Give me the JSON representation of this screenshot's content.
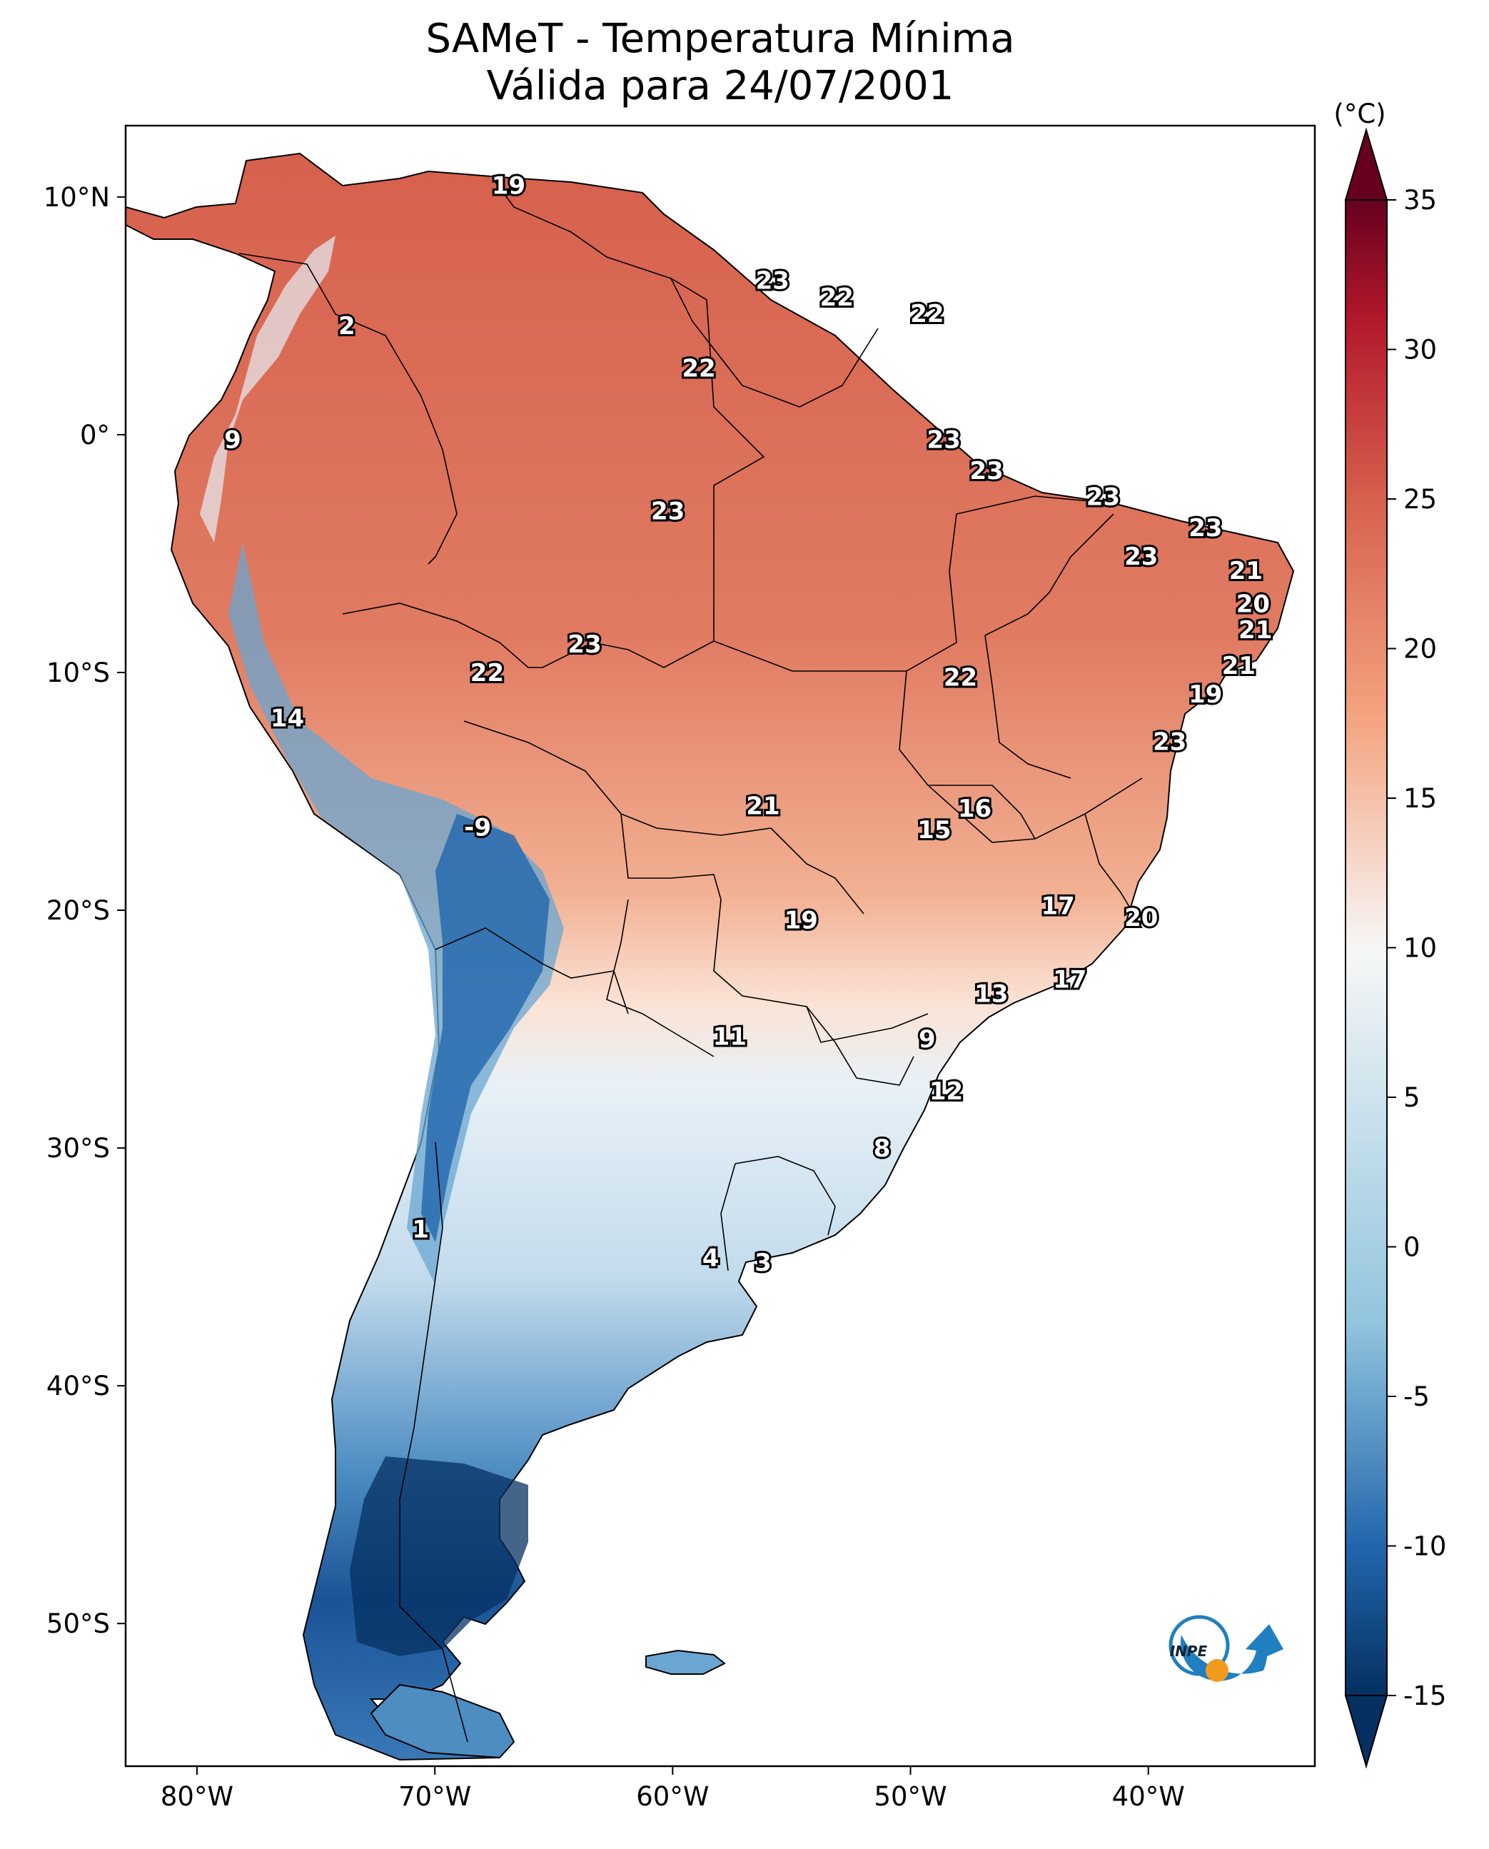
{
  "title": {
    "line1": "SAMeT - Temperatura Mínima",
    "line2": "Válida para 24/07/2001"
  },
  "map": {
    "lon_labels": [
      "80°W",
      "70°W",
      "60°W",
      "50°W",
      "40°W"
    ],
    "lat_labels": [
      "10°N",
      "0°",
      "10°S",
      "20°S",
      "30°S",
      "40°S",
      "50°S"
    ],
    "station_values": [
      {
        "lon": -66.9,
        "lat": 10.5,
        "value": "19"
      },
      {
        "lon": -55.8,
        "lat": 6.5,
        "value": "23"
      },
      {
        "lon": -53.1,
        "lat": 5.8,
        "value": "22"
      },
      {
        "lon": -49.3,
        "lat": 5.1,
        "value": "22"
      },
      {
        "lon": -73.7,
        "lat": 4.6,
        "value": "2"
      },
      {
        "lon": -58.9,
        "lat": 2.8,
        "value": "22"
      },
      {
        "lon": -78.5,
        "lat": -0.2,
        "value": "9"
      },
      {
        "lon": -48.6,
        "lat": -0.2,
        "value": "23"
      },
      {
        "lon": -46.8,
        "lat": -1.5,
        "value": "23"
      },
      {
        "lon": -41.9,
        "lat": -2.6,
        "value": "23"
      },
      {
        "lon": -60.2,
        "lat": -3.2,
        "value": "23"
      },
      {
        "lon": -37.6,
        "lat": -3.9,
        "value": "23"
      },
      {
        "lon": -40.3,
        "lat": -5.1,
        "value": "23"
      },
      {
        "lon": -35.9,
        "lat": -5.7,
        "value": "21"
      },
      {
        "lon": -35.6,
        "lat": -7.1,
        "value": "20"
      },
      {
        "lon": -35.5,
        "lat": -8.2,
        "value": "21"
      },
      {
        "lon": -63.7,
        "lat": -8.8,
        "value": "23"
      },
      {
        "lon": -36.2,
        "lat": -9.7,
        "value": "21"
      },
      {
        "lon": -67.8,
        "lat": -10.0,
        "value": "22"
      },
      {
        "lon": -47.9,
        "lat": -10.2,
        "value": "22"
      },
      {
        "lon": -37.6,
        "lat": -10.9,
        "value": "19"
      },
      {
        "lon": -76.2,
        "lat": -11.9,
        "value": "14"
      },
      {
        "lon": -39.1,
        "lat": -12.9,
        "value": "23"
      },
      {
        "lon": -56.2,
        "lat": -15.6,
        "value": "21"
      },
      {
        "lon": -47.3,
        "lat": -15.7,
        "value": "16"
      },
      {
        "lon": -49.0,
        "lat": -16.6,
        "value": "15"
      },
      {
        "lon": -68.2,
        "lat": -16.5,
        "value": "-9"
      },
      {
        "lon": -43.8,
        "lat": -19.8,
        "value": "17"
      },
      {
        "lon": -40.3,
        "lat": -20.3,
        "value": "20"
      },
      {
        "lon": -54.6,
        "lat": -20.4,
        "value": "19"
      },
      {
        "lon": -43.3,
        "lat": -22.9,
        "value": "17"
      },
      {
        "lon": -46.6,
        "lat": -23.5,
        "value": "13"
      },
      {
        "lon": -57.6,
        "lat": -25.3,
        "value": "11"
      },
      {
        "lon": -49.3,
        "lat": -25.4,
        "value": "9"
      },
      {
        "lon": -48.5,
        "lat": -27.6,
        "value": "12"
      },
      {
        "lon": -51.2,
        "lat": -30.0,
        "value": "8"
      },
      {
        "lon": -70.6,
        "lat": -33.4,
        "value": "1"
      },
      {
        "lon": -58.4,
        "lat": -34.6,
        "value": "4"
      },
      {
        "lon": -56.2,
        "lat": -34.8,
        "value": "3"
      }
    ]
  },
  "colorbar": {
    "unit": "(°C)",
    "ticks": [
      "35",
      "30",
      "25",
      "20",
      "15",
      "10",
      "5",
      "0",
      "-5",
      "-10",
      "-15"
    ],
    "min": -15,
    "max": 35
  },
  "logo": {
    "text": "INPE"
  },
  "colors": {
    "hot": "#d6604d",
    "warm": "#f4a582",
    "neutral": "#f7f7f7",
    "cool": "#92c5de",
    "cold": "#2166ac",
    "coldest": "#053061"
  }
}
